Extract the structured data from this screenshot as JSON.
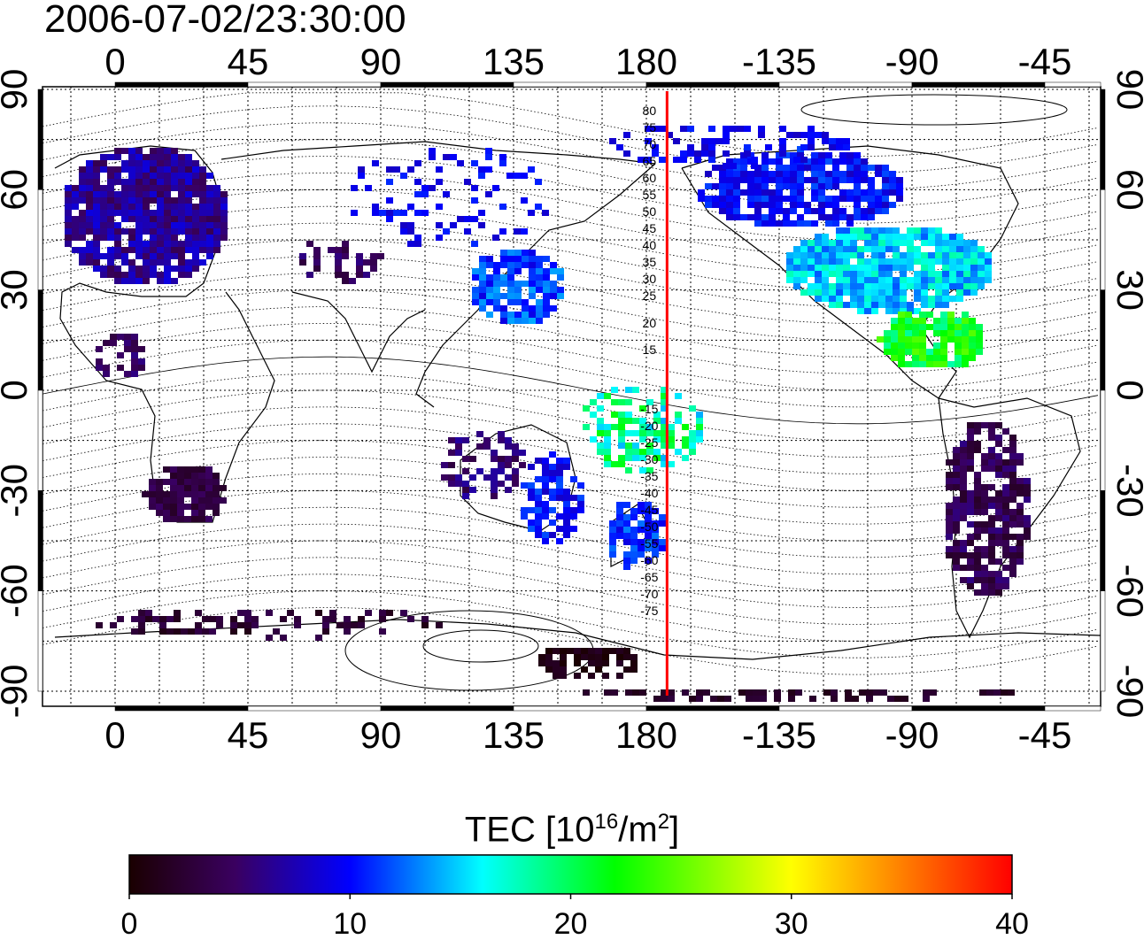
{
  "timestamp": "2006-07-02/23:30:00",
  "map": {
    "lon_ticks": [
      "0",
      "45",
      "90",
      "135",
      "180",
      "-135",
      "-90",
      "-45"
    ],
    "lat_ticks": [
      "90",
      "60",
      "30",
      "0",
      "-30",
      "-60",
      "-90"
    ],
    "mlat_labels_north": [
      "80",
      "75",
      "70",
      "65",
      "60",
      "55",
      "50",
      "45",
      "40",
      "35",
      "30",
      "25",
      "20",
      "15"
    ],
    "mlat_labels_south": [
      "-15",
      "-20",
      "-25",
      "-30",
      "-35",
      "-40",
      "-45",
      "-50",
      "-55",
      "-60",
      "-65",
      "-70",
      "-75"
    ],
    "terminator_longitude": 187,
    "terminator_color": "#ff0000"
  },
  "colorbar": {
    "label_prefix": "TEC  [10",
    "label_exp": "16",
    "label_mid": "/m",
    "label_exp2": "2",
    "label_suffix": "]",
    "ticks": [
      "0",
      "10",
      "20",
      "30",
      "40"
    ],
    "min": 0,
    "max": 40,
    "colors": [
      "#1a0000",
      "#3a0060",
      "#0000ff",
      "#00ffff",
      "#00ff00",
      "#ffff00",
      "#ff0000"
    ]
  }
}
